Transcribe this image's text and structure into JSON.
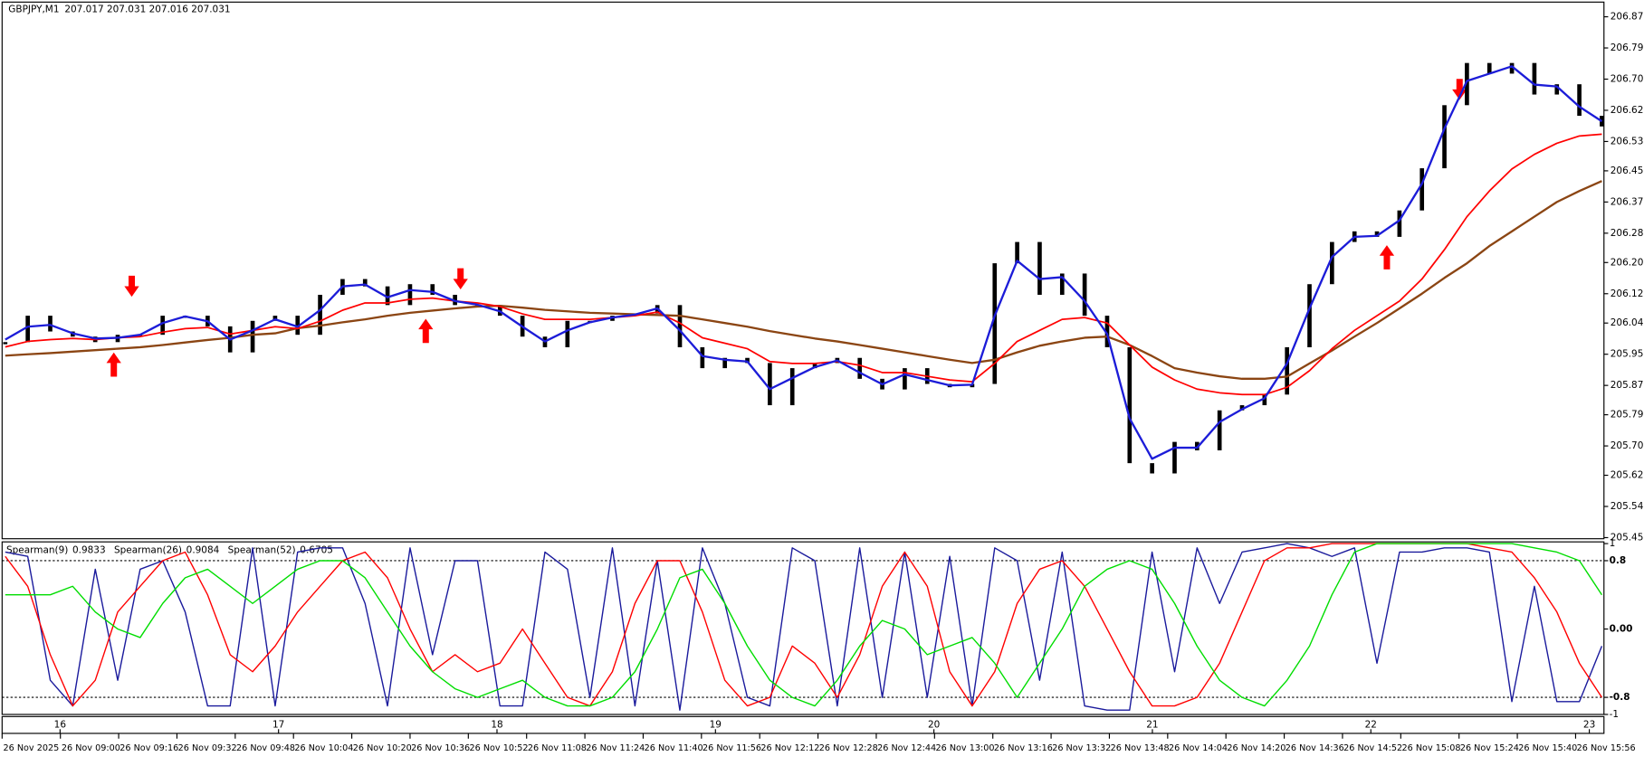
{
  "chart_data": [
    {
      "type": "candlestick",
      "title": "GBPJPY,M1",
      "quote": "207.017 207.031 207.016 207.031",
      "color": "#000000",
      "close": [
        205.988,
        206.06,
        206.017,
        206.003,
        205.988,
        206.008,
        206.008,
        206.06,
        206.06,
        206.031,
        205.96,
        206.046,
        206.06,
        206.008,
        206.117,
        206.16,
        206.14,
        206.089,
        206.146,
        206.117,
        206.089,
        206.089,
        206.06,
        206.003,
        205.974,
        206.046,
        206.046,
        206.06,
        206.066,
        206.089,
        205.974,
        205.917,
        205.945,
        205.931,
        205.816,
        205.917,
        205.931,
        205.945,
        205.888,
        205.859,
        205.917,
        205.874,
        205.865,
        205.874,
        206.203,
        206.261,
        206.117,
        206.175,
        206.06,
        205.974,
        205.658,
        205.63,
        205.716,
        205.693,
        205.802,
        205.816,
        205.845,
        205.974,
        206.146,
        206.261,
        206.29,
        206.275,
        206.347,
        206.462,
        206.634,
        206.749,
        206.72,
        206.749,
        206.663,
        206.691,
        206.605,
        206.576
      ],
      "series": [
        {
          "color": "#8b4513",
          "values": [
            205.951,
            205.955,
            205.958,
            205.962,
            205.966,
            205.97,
            205.974,
            205.98,
            205.987,
            205.994,
            206.0,
            206.008,
            206.012,
            206.026,
            206.033,
            206.042,
            206.05,
            206.06,
            206.068,
            206.074,
            206.08,
            206.085,
            206.087,
            206.082,
            206.076,
            206.072,
            206.068,
            206.066,
            206.064,
            206.062,
            206.06,
            206.05,
            206.04,
            206.03,
            206.018,
            206.008,
            205.998,
            205.99,
            205.98,
            205.97,
            205.96,
            205.95,
            205.94,
            205.931,
            205.94,
            205.96,
            205.978,
            205.99,
            206.0,
            206.003,
            205.98,
            205.95,
            205.917,
            205.905,
            205.895,
            205.888,
            205.888,
            205.894,
            205.93,
            205.965,
            206.003,
            206.04,
            206.08,
            206.12,
            206.163,
            206.203,
            206.25,
            206.29,
            206.33,
            206.37,
            206.4,
            206.427
          ]
        },
        {
          "color": "#ff0000",
          "values": [
            205.975,
            205.99,
            205.995,
            205.998,
            205.995,
            206.0,
            206.003,
            206.015,
            206.025,
            206.028,
            206.01,
            206.02,
            206.03,
            206.025,
            206.045,
            206.075,
            206.095,
            206.095,
            206.105,
            206.108,
            206.1,
            206.095,
            206.085,
            206.065,
            206.05,
            206.05,
            206.05,
            206.055,
            206.06,
            206.07,
            206.04,
            206.0,
            205.985,
            205.97,
            205.935,
            205.93,
            205.93,
            205.935,
            205.925,
            205.905,
            205.905,
            205.895,
            205.885,
            205.88,
            205.93,
            205.99,
            206.02,
            206.05,
            206.055,
            206.04,
            205.98,
            205.92,
            205.885,
            205.86,
            205.85,
            205.845,
            205.845,
            205.865,
            205.91,
            205.97,
            206.02,
            206.06,
            206.1,
            206.16,
            206.24,
            206.33,
            206.4,
            206.46,
            206.5,
            206.53,
            206.55,
            206.555
          ]
        },
        {
          "color": "#1c1cd8",
          "values": [
            205.995,
            206.03,
            206.035,
            206.012,
            205.998,
            206.0,
            206.008,
            206.04,
            206.058,
            206.045,
            205.995,
            206.02,
            206.05,
            206.03,
            206.075,
            206.14,
            206.145,
            206.11,
            206.13,
            206.125,
            206.1,
            206.09,
            206.072,
            206.03,
            205.99,
            206.02,
            206.042,
            206.055,
            206.063,
            206.08,
            206.02,
            205.95,
            205.94,
            205.935,
            205.86,
            205.89,
            205.92,
            205.938,
            205.905,
            205.873,
            205.9,
            205.885,
            205.87,
            205.872,
            206.06,
            206.21,
            206.16,
            206.165,
            206.1,
            206.01,
            205.78,
            205.67,
            205.7,
            205.7,
            205.77,
            205.805,
            205.835,
            205.93,
            206.08,
            206.22,
            206.275,
            206.278,
            206.32,
            206.42,
            206.57,
            206.7,
            206.72,
            206.74,
            206.69,
            206.685,
            206.63,
            206.59
          ]
        }
      ],
      "ylim": [
        205.452,
        206.915
      ],
      "yticks": [
        206.875,
        {
          "value": 206.79,
          "label": "206.790"
        },
        206.705,
        {
          "value": 206.62,
          "label": "206.620"
        },
        206.535,
        206.455,
        206.37,
        206.285,
        206.205,
        {
          "value": 206.12,
          "label": "206.120"
        },
        {
          "value": 206.04,
          "label": "206.040"
        },
        205.955,
        {
          "value": 205.87,
          "label": "205.870"
        },
        {
          "value": 205.79,
          "label": "205.790"
        },
        205.705,
        205.625,
        {
          "value": 205.54,
          "label": "205.540"
        },
        205.455
      ]
    },
    {
      "type": "line",
      "series": [
        {
          "name": "Spearman(9)",
          "current": 0.9833,
          "color": "#1a1a9c",
          "values": [
            0.9,
            0.85,
            -0.6,
            -0.9,
            0.7,
            -0.6,
            0.7,
            0.8,
            0.2,
            -0.9,
            -0.9,
            0.95,
            -0.9,
            0.9,
            0.95,
            0.95,
            0.3,
            -0.9,
            0.95,
            -0.3,
            0.8,
            0.8,
            -0.9,
            -0.9,
            0.9,
            0.7,
            -0.8,
            0.95,
            -0.9,
            0.8,
            -0.95,
            0.95,
            0.3,
            -0.8,
            -0.9,
            0.95,
            0.8,
            -0.9,
            0.95,
            -0.8,
            0.9,
            -0.8,
            0.85,
            -0.9,
            0.95,
            0.8,
            -0.6,
            0.9,
            -0.9,
            -0.95,
            -0.95,
            0.9,
            -0.5,
            0.95,
            0.3,
            0.9,
            0.95,
            1,
            0.95,
            0.85,
            0.95,
            -0.4,
            0.9,
            0.9,
            0.95,
            0.95,
            0.9,
            -0.85,
            0.5,
            -0.85,
            -0.85,
            -0.2
          ]
        },
        {
          "name": "Spearman(26)",
          "current": 0.9084,
          "color": "#ff0000",
          "values": [
            0.85,
            0.5,
            -0.3,
            -0.9,
            -0.6,
            0.2,
            0.5,
            0.8,
            0.9,
            0.4,
            -0.3,
            -0.5,
            -0.2,
            0.2,
            0.5,
            0.8,
            0.9,
            0.6,
            0.0,
            -0.5,
            -0.3,
            -0.5,
            -0.4,
            0.0,
            -0.4,
            -0.8,
            -0.9,
            -0.5,
            0.3,
            0.8,
            0.8,
            0.2,
            -0.6,
            -0.9,
            -0.8,
            -0.2,
            -0.4,
            -0.8,
            -0.3,
            0.5,
            0.9,
            0.5,
            -0.5,
            -0.9,
            -0.5,
            0.3,
            0.7,
            0.8,
            0.5,
            0.0,
            -0.5,
            -0.9,
            -0.9,
            -0.8,
            -0.4,
            0.2,
            0.8,
            0.95,
            0.95,
            1.0,
            1.0,
            1.0,
            1.0,
            1.0,
            1.0,
            1.0,
            0.95,
            0.9,
            0.6,
            0.2,
            -0.4,
            -0.8
          ]
        },
        {
          "name": "Spearman(52)",
          "current": 0.6705,
          "color": "#00dd00",
          "values": [
            0.4,
            0.4,
            0.4,
            0.5,
            0.2,
            0.0,
            -0.1,
            0.3,
            0.6,
            0.7,
            0.5,
            0.3,
            0.5,
            0.7,
            0.8,
            0.8,
            0.6,
            0.2,
            -0.2,
            -0.5,
            -0.7,
            -0.8,
            -0.7,
            -0.6,
            -0.8,
            -0.9,
            -0.9,
            -0.8,
            -0.5,
            0.0,
            0.6,
            0.7,
            0.3,
            -0.2,
            -0.6,
            -0.8,
            -0.9,
            -0.6,
            -0.2,
            0.1,
            0.0,
            -0.3,
            -0.2,
            -0.1,
            -0.4,
            -0.8,
            -0.4,
            0.0,
            0.5,
            0.7,
            0.8,
            0.7,
            0.3,
            -0.2,
            -0.6,
            -0.8,
            -0.9,
            -0.6,
            -0.2,
            0.4,
            0.9,
            1.0,
            1.0,
            1.0,
            1.0,
            1.0,
            1.0,
            1.0,
            0.95,
            0.9,
            0.8,
            0.4
          ]
        }
      ],
      "ylim": [
        -1,
        1.02
      ],
      "yticks": [
        1,
        0.8,
        {
          "value": 0,
          "label": "0.00"
        },
        -0.8,
        -1
      ],
      "levels": [
        0.8,
        -0.8
      ],
      "day_labels": [
        "16",
        "17",
        "18",
        "19",
        "20",
        "21",
        "22",
        "23"
      ],
      "xticklabels": [
        "26 Nov 2025",
        "26 Nov 09:00",
        "26 Nov 09:16",
        "26 Nov 09:32",
        "26 Nov 09:48",
        "26 Nov 10:04",
        "26 Nov 10:20",
        "26 Nov 10:36",
        "26 Nov 10:52",
        "26 Nov 11:08",
        "26 Nov 11:24",
        "26 Nov 11:40",
        "26 Nov 11:56",
        "26 Nov 12:12",
        "26 Nov 12:28",
        "26 Nov 12:44",
        "26 Nov 13:00",
        "26 Nov 13:16",
        "26 Nov 13:32",
        "26 Nov 13:48",
        "26 Nov 14:04",
        "26 Nov 14:20",
        "26 Nov 14:36",
        "26 Nov 14:52",
        "26 Nov 15:08",
        "26 Nov 15:24",
        "26 Nov 15:40",
        "26 Nov 15:56"
      ]
    }
  ]
}
